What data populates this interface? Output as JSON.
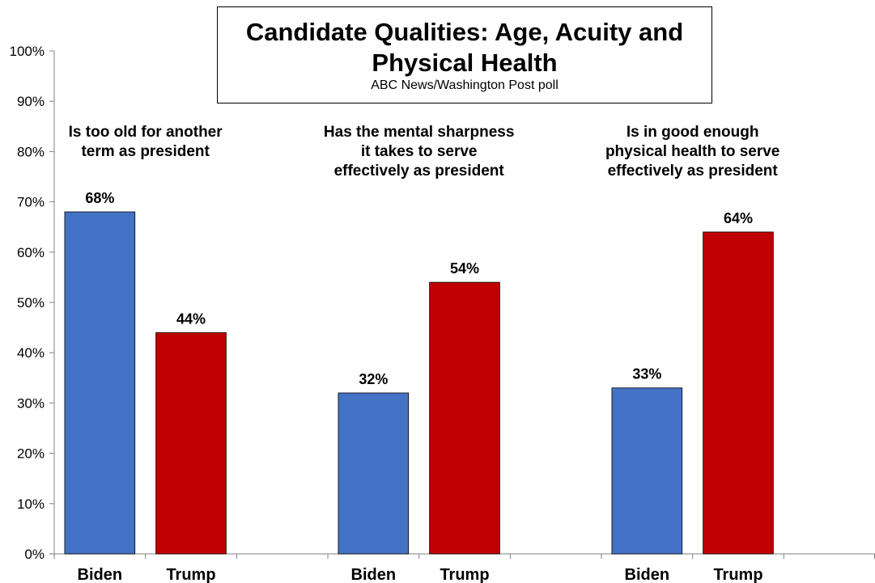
{
  "chart_data": {
    "type": "bar",
    "title": "Candidate Qualities: Age, Acuity and Physical Health",
    "subtitle": "ABC News/Washington Post poll",
    "groups": [
      {
        "label_lines": [
          "Is too old for another",
          "term as president"
        ],
        "bars": [
          {
            "category": "Biden",
            "value": 68,
            "label": "68%",
            "color": "#4472C4"
          },
          {
            "category": "Trump",
            "value": 44,
            "label": "44%",
            "color": "#C00000"
          }
        ]
      },
      {
        "label_lines": [
          "Has the mental sharpness",
          "it takes to serve",
          "effectively as president"
        ],
        "bars": [
          {
            "category": "Biden",
            "value": 32,
            "label": "32%",
            "color": "#4472C4"
          },
          {
            "category": "Trump",
            "value": 54,
            "label": "54%",
            "color": "#C00000"
          }
        ]
      },
      {
        "label_lines": [
          "Is in good enough",
          "physical health to serve",
          "effectively as president"
        ],
        "bars": [
          {
            "category": "Biden",
            "value": 33,
            "label": "33%",
            "color": "#4472C4"
          },
          {
            "category": "Trump",
            "value": 64,
            "label": "64%",
            "color": "#C00000"
          }
        ]
      }
    ],
    "ylim": [
      0,
      100
    ],
    "yticks": [
      "0%",
      "10%",
      "20%",
      "30%",
      "40%",
      "50%",
      "60%",
      "70%",
      "80%",
      "90%",
      "100%"
    ],
    "grid": false,
    "legend": "none",
    "colors": {
      "biden": "#4472C4",
      "trump": "#C00000",
      "axis": "#808080"
    }
  }
}
